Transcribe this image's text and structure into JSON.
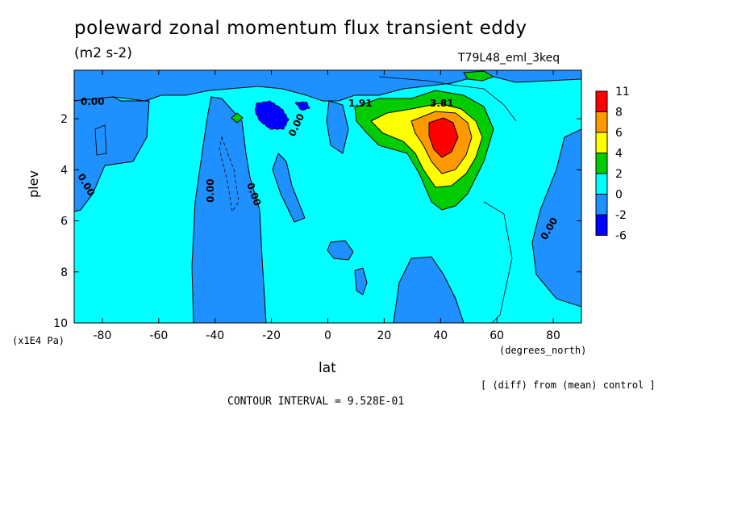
{
  "chart_data": {
    "type": "heatmap",
    "title": "poleward zonal momentum flux transient eddy",
    "subtitle": "(m2 s-2)",
    "run_label": "T79L48_eml_3keq",
    "xlabel": "lat",
    "x_unit": "(degrees_north)",
    "ylabel": "plev",
    "y_unit": "(x1E4 Pa)",
    "xlim": [
      -90,
      90
    ],
    "ylim": [
      10,
      0.1
    ],
    "x_ticks": [
      -80,
      -60,
      -40,
      -20,
      0,
      20,
      40,
      60,
      80
    ],
    "x_tick_labels": [
      "-80",
      "-60",
      "-40",
      "-20",
      "0",
      "20",
      "40",
      "60",
      "80"
    ],
    "y_ticks": [
      2,
      4,
      6,
      8,
      10
    ],
    "y_tick_labels": [
      "2",
      "4",
      "6",
      "8",
      "10"
    ],
    "note": "[ (diff) from (mean) control ]",
    "contour_interval": "CONTOUR INTERVAL = 9.528E-01",
    "contour_labels": [
      {
        "text": "0.00",
        "lat": -83,
        "plev": 1.2
      },
      {
        "text": "0.00",
        "lat": -87,
        "plev": 4.7
      },
      {
        "text": "0.00",
        "lat": -42,
        "plev": 4.6
      },
      {
        "text": "0.00",
        "lat": -26,
        "plev": 4.6
      },
      {
        "text": "0.00",
        "lat": -9,
        "plev": 2.1
      },
      {
        "text": "1.91",
        "lat": 12,
        "plev": 1.2
      },
      {
        "text": "3.81",
        "lat": 40,
        "plev": 1.2
      },
      {
        "text": "0.00",
        "lat": 79,
        "plev": 6.8
      }
    ],
    "colorbar": {
      "levels": [
        "11",
        "8",
        "6",
        "4",
        "2",
        "0",
        "-2",
        "-6"
      ],
      "colors": [
        "#ff0000",
        "#ff9900",
        "#ffff00",
        "#00cc00",
        "#00ffff",
        "#1e90ff",
        "#0000ff"
      ]
    }
  }
}
